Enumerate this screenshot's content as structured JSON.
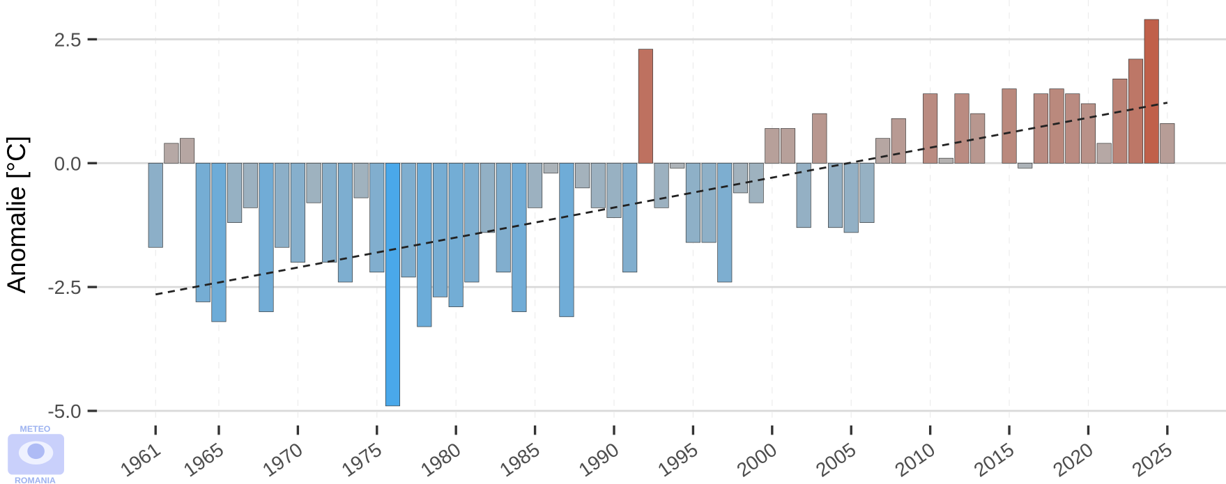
{
  "chart_data": {
    "type": "bar",
    "title": "",
    "xlabel": "",
    "ylabel": "Anomalie [°C]",
    "ylim": [
      -5.2,
      3.0
    ],
    "xlim": [
      1959.5,
      2028.5
    ],
    "grid": true,
    "yticks": [
      2.5,
      0.0,
      -2.5,
      -5.0
    ],
    "ytick_labels": [
      "2.5",
      "0.0",
      "-2.5",
      "-5.0"
    ],
    "xticks": [
      1961,
      1965,
      1970,
      1975,
      1980,
      1985,
      1990,
      1995,
      2000,
      2005,
      2010,
      2015,
      2020,
      2025
    ],
    "xtick_labels": [
      "1961",
      "1965",
      "1970",
      "1975",
      "1980",
      "1985",
      "1990",
      "1995",
      "2000",
      "2005",
      "2010",
      "2015",
      "2020",
      "2025"
    ],
    "years": [
      1961,
      1962,
      1963,
      1964,
      1965,
      1966,
      1967,
      1968,
      1969,
      1970,
      1971,
      1972,
      1973,
      1974,
      1975,
      1976,
      1977,
      1978,
      1979,
      1980,
      1981,
      1982,
      1983,
      1984,
      1985,
      1986,
      1987,
      1988,
      1989,
      1990,
      1991,
      1992,
      1993,
      1994,
      1995,
      1996,
      1997,
      1998,
      1999,
      2000,
      2001,
      2002,
      2003,
      2004,
      2005,
      2006,
      2007,
      2008,
      2009,
      2010,
      2011,
      2012,
      2013,
      2014,
      2015,
      2016,
      2017,
      2018,
      2019,
      2020,
      2021,
      2022,
      2023,
      2024,
      2025
    ],
    "values": [
      -1.7,
      0.4,
      0.5,
      -2.8,
      -3.2,
      -1.2,
      -0.9,
      -3.0,
      -1.7,
      -2.0,
      -0.8,
      -2.0,
      -2.4,
      -0.7,
      -2.2,
      -4.9,
      -2.3,
      -3.3,
      -2.7,
      -2.9,
      -2.4,
      -1.4,
      -2.2,
      -3.0,
      -0.9,
      -0.2,
      -3.1,
      -0.5,
      -0.9,
      -1.1,
      -2.2,
      2.3,
      -0.9,
      -0.1,
      -1.6,
      -1.6,
      -2.4,
      -0.6,
      -0.8,
      0.7,
      0.7,
      -1.3,
      1.0,
      -1.3,
      -1.4,
      -1.2,
      0.5,
      0.9,
      0.0,
      1.4,
      0.1,
      1.4,
      1.0,
      0.0,
      1.5,
      -0.1,
      1.4,
      1.5,
      1.4,
      1.2,
      0.4,
      1.7,
      2.1,
      2.9,
      0.8
    ],
    "trend": {
      "style": "dashed",
      "start": [
        1961,
        -2.65
      ],
      "end": [
        2025,
        1.22
      ]
    },
    "colors": {
      "cold": "#4aa8ea",
      "neutral": "#b4b4b4",
      "warm": "#c0604a",
      "grid": "#d9d9d9",
      "trend": "#222222"
    }
  },
  "logo": {
    "top_text": "METEO",
    "bottom_text": "ROMANIA"
  }
}
